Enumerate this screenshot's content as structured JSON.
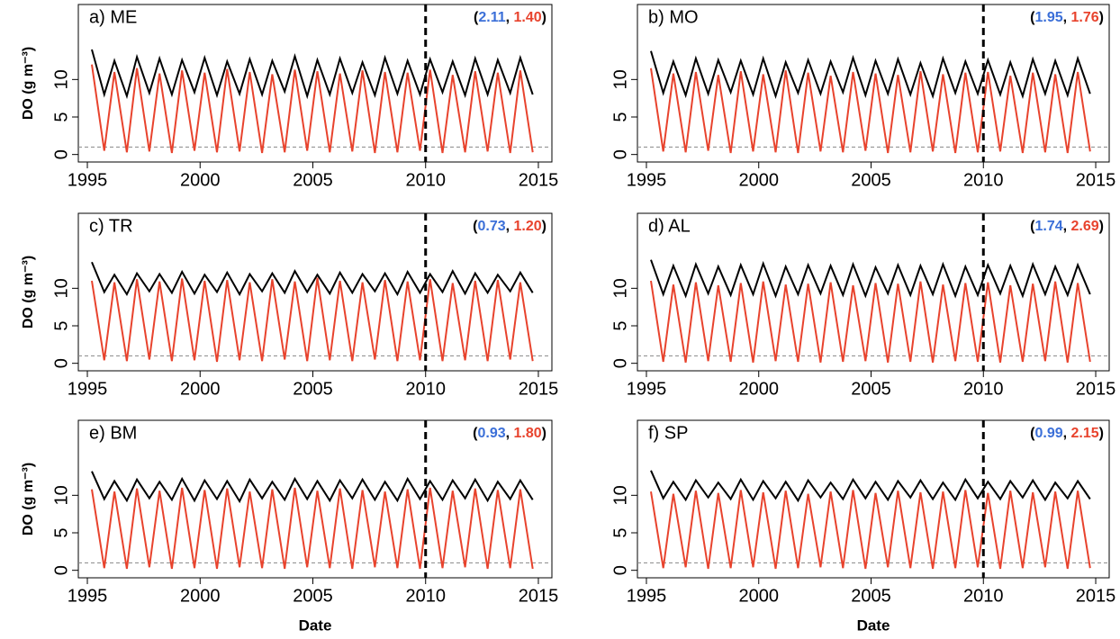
{
  "chart_data": [
    {
      "type": "line",
      "title": "a) ME",
      "ylabel": "DO (g m⁻³)",
      "annotation": {
        "open": "(",
        "values": [
          2.11,
          1.4
        ],
        "labels": [
          "2.11",
          "1.40"
        ],
        "colors": [
          "#3b6fd8",
          "#e8432d"
        ],
        "sep": ", ",
        "close": ")"
      },
      "xlim": [
        1994.6,
        2015.6
      ],
      "ylim": [
        -1,
        20
      ],
      "xticks": [
        1995,
        2000,
        2005,
        2010,
        2015
      ],
      "yticks": [
        0,
        5,
        10
      ],
      "vline": 2010,
      "hline": 1,
      "x": [
        1995.2,
        1995.75,
        1996.2,
        1996.75,
        1997.2,
        1997.75,
        1998.2,
        1998.75,
        1999.2,
        1999.75,
        2000.2,
        2000.75,
        2001.2,
        2001.75,
        2002.2,
        2002.75,
        2003.2,
        2003.75,
        2004.2,
        2004.75,
        2005.2,
        2005.75,
        2006.2,
        2006.75,
        2007.2,
        2007.75,
        2008.2,
        2008.75,
        2009.2,
        2009.75,
        2010.2,
        2010.75,
        2011.2,
        2011.75,
        2012.2,
        2012.75,
        2013.2,
        2013.75,
        2014.2,
        2014.75
      ],
      "series": [
        {
          "color": "#e8432d",
          "values": [
            12,
            0.5,
            11,
            0.3,
            11.5,
            0.4,
            10.8,
            0.2,
            11.2,
            0.5,
            10.9,
            0.3,
            11.4,
            0.4,
            11,
            0.2,
            10.7,
            0.3,
            11.3,
            0.5,
            11.1,
            0.3,
            10.8,
            0.4,
            11.2,
            0.2,
            11,
            0.3,
            10.9,
            0.5,
            11.3,
            0.2,
            10.6,
            0.3,
            11.1,
            0.4,
            10.9,
            0.2,
            11.2,
            0.3
          ]
        },
        {
          "color": "#000000",
          "values": [
            14,
            8,
            12.5,
            7.8,
            13,
            8.2,
            12.8,
            8,
            12.6,
            8.3,
            12.9,
            7.9,
            12.4,
            8.1,
            12.7,
            8,
            12.5,
            8.4,
            13.1,
            7.8,
            12.6,
            8,
            12.8,
            8.2,
            12.3,
            7.9,
            12.9,
            8.1,
            12.5,
            8,
            12.7,
            8.3,
            12.4,
            7.9,
            12.8,
            8,
            12.6,
            8.2,
            12.9,
            8
          ]
        }
      ]
    },
    {
      "type": "line",
      "title": "b) MO",
      "annotation": {
        "open": "(",
        "values": [
          1.95,
          1.76
        ],
        "labels": [
          "1.95",
          "1.76"
        ],
        "colors": [
          "#3b6fd8",
          "#e8432d"
        ],
        "sep": ", ",
        "close": ")"
      },
      "xlim": [
        1994.6,
        2015.6
      ],
      "ylim": [
        -1,
        20
      ],
      "xticks": [
        1995,
        2000,
        2005,
        2010,
        2015
      ],
      "yticks": [
        0,
        5,
        10
      ],
      "vline": 2010,
      "hline": 1,
      "x": [
        1995.2,
        1995.75,
        1996.2,
        1996.75,
        1997.2,
        1997.75,
        1998.2,
        1998.75,
        1999.2,
        1999.75,
        2000.2,
        2000.75,
        2001.2,
        2001.75,
        2002.2,
        2002.75,
        2003.2,
        2003.75,
        2004.2,
        2004.75,
        2005.2,
        2005.75,
        2006.2,
        2006.75,
        2007.2,
        2007.75,
        2008.2,
        2008.75,
        2009.2,
        2009.75,
        2010.2,
        2010.75,
        2011.2,
        2011.75,
        2012.2,
        2012.75,
        2013.2,
        2013.75,
        2014.2,
        2014.75
      ],
      "series": [
        {
          "color": "#e8432d",
          "values": [
            11.5,
            0.4,
            10.8,
            0.3,
            11,
            0.5,
            10.6,
            0.2,
            11.1,
            0.4,
            10.7,
            0.3,
            11.2,
            0.2,
            10.9,
            0.4,
            10.5,
            0.3,
            11,
            0.5,
            10.8,
            0.2,
            10.6,
            0.3,
            11.1,
            0.4,
            10.7,
            0.2,
            10.9,
            0.3,
            11,
            0.4,
            10.5,
            0.2,
            10.9,
            0.3,
            10.7,
            0.2,
            11,
            0.4
          ]
        },
        {
          "color": "#000000",
          "values": [
            13.8,
            8.2,
            12.4,
            7.9,
            12.8,
            8.1,
            12.6,
            8.3,
            12.5,
            8,
            12.8,
            7.8,
            12.3,
            8.2,
            12.6,
            8.1,
            12.4,
            8.3,
            12.9,
            7.9,
            12.5,
            8.1,
            12.7,
            8,
            12.2,
            7.8,
            12.8,
            8.2,
            12.4,
            8.1,
            12.6,
            8,
            12.3,
            7.8,
            12.7,
            8.1,
            12.5,
            7.9,
            12.8,
            8.1
          ]
        }
      ]
    },
    {
      "type": "line",
      "title": "c) TR",
      "ylabel": "DO (g m⁻³)",
      "annotation": {
        "open": "(",
        "values": [
          0.73,
          1.2
        ],
        "labels": [
          "0.73",
          "1.20"
        ],
        "colors": [
          "#3b6fd8",
          "#e8432d"
        ],
        "sep": ", ",
        "close": ")"
      },
      "xlim": [
        1994.6,
        2015.6
      ],
      "ylim": [
        -1,
        20
      ],
      "xticks": [
        1995,
        2000,
        2005,
        2010,
        2015
      ],
      "yticks": [
        0,
        5,
        10
      ],
      "vline": 2010,
      "hline": 1,
      "x": [
        1995.2,
        1995.75,
        1996.2,
        1996.75,
        1997.2,
        1997.75,
        1998.2,
        1998.75,
        1999.2,
        1999.75,
        2000.2,
        2000.75,
        2001.2,
        2001.75,
        2002.2,
        2002.75,
        2003.2,
        2003.75,
        2004.2,
        2004.75,
        2005.2,
        2005.75,
        2006.2,
        2006.75,
        2007.2,
        2007.75,
        2008.2,
        2008.75,
        2009.2,
        2009.75,
        2010.2,
        2010.75,
        2011.2,
        2011.75,
        2012.2,
        2012.75,
        2013.2,
        2013.75,
        2014.2,
        2014.75
      ],
      "series": [
        {
          "color": "#e8432d",
          "values": [
            11,
            0.4,
            10.8,
            0.3,
            11.2,
            0.5,
            10.9,
            0.3,
            11.3,
            0.4,
            11,
            0.2,
            11.1,
            0.4,
            10.8,
            0.3,
            11.2,
            0.5,
            10.9,
            0.3,
            11.4,
            0.4,
            11,
            0.3,
            10.8,
            0.5,
            11.1,
            0.3,
            10.9,
            0.4,
            11.2,
            0.3,
            10.7,
            0.4,
            11,
            0.3,
            11.1,
            0.5,
            10.8,
            0.3
          ]
        },
        {
          "color": "#000000",
          "values": [
            13.5,
            9.5,
            11.8,
            9.2,
            12,
            9.6,
            11.9,
            9.4,
            12.2,
            9.3,
            11.8,
            9.5,
            12.1,
            9.2,
            11.9,
            9.6,
            12,
            9.4,
            12.3,
            9.5,
            11.8,
            9.3,
            12.1,
            9.4,
            11.9,
            9.6,
            12,
            9.2,
            12.2,
            9.4,
            11.9,
            9.5,
            12.3,
            9.3,
            12,
            9.4,
            11.8,
            9.6,
            12.1,
            9.4
          ]
        }
      ]
    },
    {
      "type": "line",
      "title": "d) AL",
      "annotation": {
        "open": "(",
        "values": [
          1.74,
          2.69
        ],
        "labels": [
          "1.74",
          "2.69"
        ],
        "colors": [
          "#3b6fd8",
          "#e8432d"
        ],
        "sep": ", ",
        "close": ")"
      },
      "xlim": [
        1994.6,
        2015.6
      ],
      "ylim": [
        -1,
        20
      ],
      "xticks": [
        1995,
        2000,
        2005,
        2010,
        2015
      ],
      "yticks": [
        0,
        5,
        10
      ],
      "vline": 2010,
      "hline": 1,
      "x": [
        1995.2,
        1995.75,
        1996.2,
        1996.75,
        1997.2,
        1997.75,
        1998.2,
        1998.75,
        1999.2,
        1999.75,
        2000.2,
        2000.75,
        2001.2,
        2001.75,
        2002.2,
        2002.75,
        2003.2,
        2003.75,
        2004.2,
        2004.75,
        2005.2,
        2005.75,
        2006.2,
        2006.75,
        2007.2,
        2007.75,
        2008.2,
        2008.75,
        2009.2,
        2009.75,
        2010.2,
        2010.75,
        2011.2,
        2011.75,
        2012.2,
        2012.75,
        2013.2,
        2013.75,
        2014.2,
        2014.75
      ],
      "series": [
        {
          "color": "#e8432d",
          "values": [
            11,
            0.2,
            10.5,
            0.1,
            10.8,
            0.3,
            10.4,
            0.2,
            10.7,
            0.1,
            10.9,
            0.3,
            10.5,
            0.2,
            10.6,
            0.1,
            10.8,
            0.2,
            10.4,
            0.3,
            10.7,
            0.1,
            10.6,
            0.2,
            10.9,
            0.1,
            10.5,
            0.3,
            10.7,
            0.2,
            10.8,
            0.1,
            10.4,
            0.2,
            10.6,
            0.3,
            10.9,
            0.1,
            10.7,
            0.2
          ]
        },
        {
          "color": "#000000",
          "values": [
            13.8,
            9.2,
            13,
            9,
            13.2,
            9.3,
            12.9,
            9.1,
            13.1,
            9.2,
            13.3,
            9,
            12.9,
            9.2,
            13.1,
            9.3,
            13,
            9.1,
            13.2,
            9,
            12.8,
            9.3,
            13.1,
            9.1,
            13,
            9.2,
            13.2,
            9,
            12.9,
            9.1,
            13.1,
            9.3,
            13,
            9,
            13.2,
            9.2,
            12.9,
            9.1,
            13.1,
            9.2
          ]
        }
      ]
    },
    {
      "type": "line",
      "title": "e) BM",
      "ylabel": "DO (g m⁻³)",
      "xlabel": "Date",
      "annotation": {
        "open": "(",
        "values": [
          0.93,
          1.8
        ],
        "labels": [
          "0.93",
          "1.80"
        ],
        "colors": [
          "#3b6fd8",
          "#e8432d"
        ],
        "sep": ", ",
        "close": ")"
      },
      "xlim": [
        1994.6,
        2015.6
      ],
      "ylim": [
        -1,
        20
      ],
      "xticks": [
        1995,
        2000,
        2005,
        2010,
        2015
      ],
      "yticks": [
        0,
        5,
        10
      ],
      "vline": 2010,
      "hline": 1,
      "x": [
        1995.2,
        1995.75,
        1996.2,
        1996.75,
        1997.2,
        1997.75,
        1998.2,
        1998.75,
        1999.2,
        1999.75,
        2000.2,
        2000.75,
        2001.2,
        2001.75,
        2002.2,
        2002.75,
        2003.2,
        2003.75,
        2004.2,
        2004.75,
        2005.2,
        2005.75,
        2006.2,
        2006.75,
        2007.2,
        2007.75,
        2008.2,
        2008.75,
        2009.2,
        2009.75,
        2010.2,
        2010.75,
        2011.2,
        2011.75,
        2012.2,
        2012.75,
        2013.2,
        2013.75,
        2014.2,
        2014.75
      ],
      "series": [
        {
          "color": "#e8432d",
          "values": [
            10.8,
            0.3,
            10.5,
            0.2,
            10.9,
            0.4,
            10.6,
            0.2,
            11,
            0.3,
            10.7,
            0.2,
            10.9,
            0.4,
            10.5,
            0.3,
            10.8,
            0.2,
            11,
            0.4,
            10.6,
            0.3,
            10.9,
            0.2,
            10.7,
            0.4,
            10.5,
            0.3,
            10.8,
            0.2,
            11,
            0.3,
            10.6,
            0.4,
            10.9,
            0.2,
            10.7,
            0.3,
            10.8,
            0.2
          ]
        },
        {
          "color": "#000000",
          "values": [
            13.2,
            9.5,
            11.9,
            9.3,
            12.1,
            9.6,
            11.8,
            9.4,
            12.2,
            9.3,
            12,
            9.5,
            11.9,
            9.2,
            12.1,
            9.6,
            11.8,
            9.4,
            12.2,
            9.5,
            11.9,
            9.3,
            12,
            9.6,
            12.1,
            9.4,
            11.8,
            9.3,
            12.2,
            9.5,
            11.9,
            9.4,
            12,
            9.6,
            12.1,
            9.3,
            11.8,
            9.5,
            12,
            9.4
          ]
        }
      ]
    },
    {
      "type": "line",
      "title": "f) SP",
      "xlabel": "Date",
      "annotation": {
        "open": "(",
        "values": [
          0.99,
          2.15
        ],
        "labels": [
          "0.99",
          "2.15"
        ],
        "colors": [
          "#3b6fd8",
          "#e8432d"
        ],
        "sep": ", ",
        "close": ")"
      },
      "xlim": [
        1994.6,
        2015.6
      ],
      "ylim": [
        -1,
        20
      ],
      "xticks": [
        1995,
        2000,
        2005,
        2010,
        2015
      ],
      "yticks": [
        0,
        5,
        10
      ],
      "vline": 2010,
      "hline": 1,
      "x": [
        1995.2,
        1995.75,
        1996.2,
        1996.75,
        1997.2,
        1997.75,
        1998.2,
        1998.75,
        1999.2,
        1999.75,
        2000.2,
        2000.75,
        2001.2,
        2001.75,
        2002.2,
        2002.75,
        2003.2,
        2003.75,
        2004.2,
        2004.75,
        2005.2,
        2005.75,
        2006.2,
        2006.75,
        2007.2,
        2007.75,
        2008.2,
        2008.75,
        2009.2,
        2009.75,
        2010.2,
        2010.75,
        2011.2,
        2011.75,
        2012.2,
        2012.75,
        2013.2,
        2013.75,
        2014.2,
        2014.75
      ],
      "series": [
        {
          "color": "#e8432d",
          "values": [
            10.5,
            0.3,
            10.2,
            0.4,
            10.6,
            0.2,
            10.3,
            0.3,
            10.7,
            0.4,
            10.4,
            0.2,
            10.6,
            0.3,
            10.2,
            0.4,
            10.5,
            0.3,
            10.7,
            0.2,
            10.3,
            0.4,
            10.6,
            0.3,
            10.4,
            0.2,
            10.5,
            0.3,
            10.7,
            0.4,
            10.3,
            0.2,
            10.6,
            0.3,
            10.4,
            0.4,
            10.5,
            0.2,
            10.6,
            0.3
          ]
        },
        {
          "color": "#000000",
          "values": [
            13.3,
            9.6,
            11.8,
            9.4,
            12,
            9.7,
            11.7,
            9.5,
            12.1,
            9.4,
            11.9,
            9.6,
            11.8,
            9.3,
            12,
            9.7,
            11.7,
            9.5,
            12.1,
            9.6,
            11.8,
            9.4,
            11.9,
            9.7,
            12,
            9.5,
            11.7,
            9.4,
            12.1,
            9.6,
            11.8,
            9.5,
            11.9,
            9.7,
            12,
            9.4,
            11.7,
            9.6,
            11.9,
            9.5
          ]
        }
      ]
    }
  ]
}
